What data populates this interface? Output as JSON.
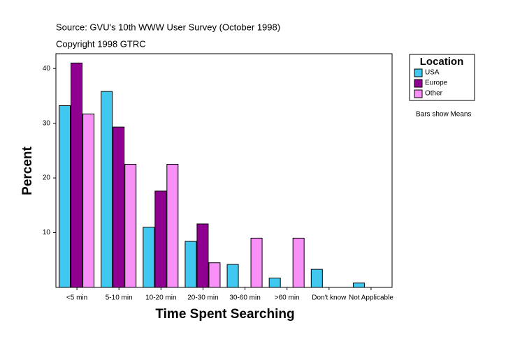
{
  "chart_data": {
    "type": "bar",
    "source": "Source: GVU's 10th WWW User Survey (October 1998)",
    "copyright": "Copyright 1998 GTRC",
    "xlabel": "Time Spent Searching",
    "ylabel": "Percent",
    "legend_title": "Location",
    "note": "Bars show Means",
    "legend": "right",
    "categories": [
      "<5 min",
      "5-10 min",
      "10-20 min",
      "20-30 min",
      "30-60 min",
      ">60 min",
      "Don't know",
      "Not Applicable"
    ],
    "series": [
      {
        "name": "USA",
        "color": "#40c8f0",
        "values": [
          33.2,
          35.8,
          11.0,
          8.4,
          4.2,
          1.7,
          3.3,
          0.8
        ]
      },
      {
        "name": "Europe",
        "color": "#900090",
        "values": [
          41.0,
          29.3,
          17.6,
          11.6,
          null,
          null,
          null,
          null
        ]
      },
      {
        "name": "Other",
        "color": "#f890f8",
        "values": [
          31.7,
          22.5,
          22.5,
          4.5,
          9.0,
          9.0,
          null,
          null
        ]
      }
    ],
    "ylim": [
      0,
      42.7
    ],
    "yticks": [
      10,
      20,
      30,
      40
    ]
  }
}
